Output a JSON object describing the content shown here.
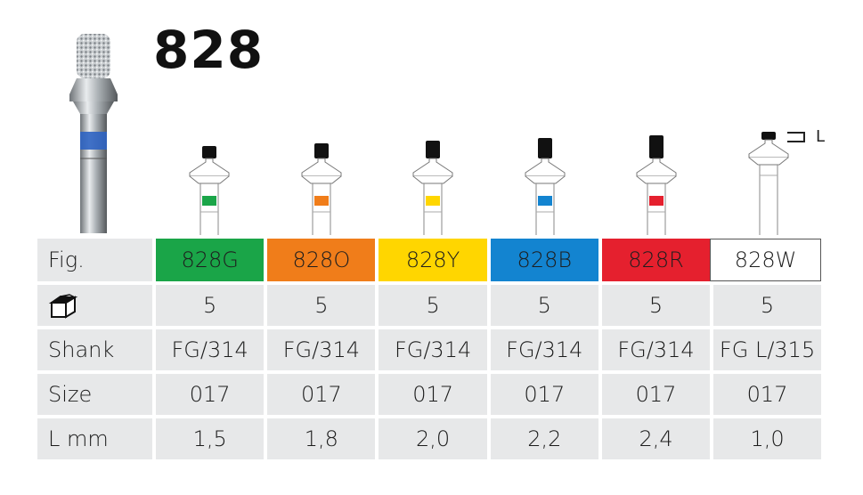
{
  "title": "828",
  "legend": {
    "label": "L"
  },
  "colors": {
    "green": "#1aa548",
    "orange": "#f07d1a",
    "yellow": "#ffd600",
    "blue": "#1384d0",
    "red": "#e5202e",
    "white": "#ffffff",
    "row_bg": "#e7e8e9"
  },
  "table": {
    "row_labels": {
      "fig": "Fig.",
      "shank": "Shank",
      "size": "Size",
      "length": "L mm"
    },
    "pack_icon": "package-box-icon",
    "columns": [
      {
        "fig": "828G",
        "color": "#1aa548",
        "pack": "5",
        "shank": "FG/314",
        "size": "017",
        "length": "1,5"
      },
      {
        "fig": "828O",
        "color": "#f07d1a",
        "pack": "5",
        "shank": "FG/314",
        "size": "017",
        "length": "1,8"
      },
      {
        "fig": "828Y",
        "color": "#ffd600",
        "pack": "5",
        "shank": "FG/314",
        "size": "017",
        "length": "2,0"
      },
      {
        "fig": "828B",
        "color": "#1384d0",
        "pack": "5",
        "shank": "FG/314",
        "size": "017",
        "length": "2,2"
      },
      {
        "fig": "828R",
        "color": "#e5202e",
        "pack": "5",
        "shank": "FG/314",
        "size": "017",
        "length": "2,4"
      },
      {
        "fig": "828W",
        "color": "#ffffff",
        "pack": "5",
        "shank": "FG L/315",
        "size": "017",
        "length": "1,0"
      }
    ]
  }
}
